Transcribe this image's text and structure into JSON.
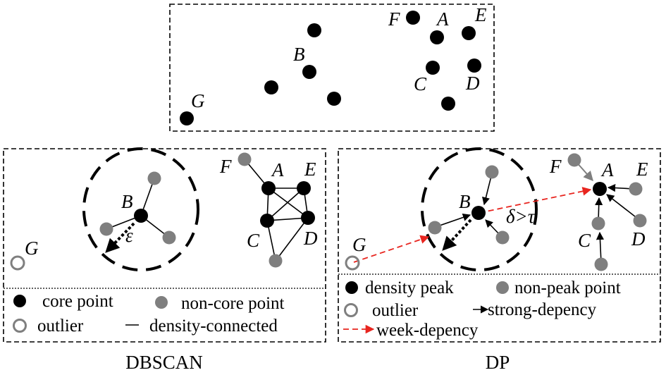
{
  "top_panel": {
    "labels": {
      "A": "A",
      "B": "B",
      "C": "C",
      "D": "D",
      "E": "E",
      "F": "F",
      "G": "G"
    }
  },
  "dbscan_panel": {
    "labels": {
      "A": "A",
      "B": "B",
      "C": "C",
      "D": "D",
      "E": "E",
      "F": "F",
      "G": "G"
    },
    "epsilon_label": "ε",
    "legend": {
      "core_point": "core point",
      "non_core_point": "non-core point",
      "outlier": "outlier",
      "density_connected": "density-connected"
    },
    "caption": "DBSCAN"
  },
  "dp_panel": {
    "labels": {
      "A": "A",
      "B": "B",
      "C": "C",
      "D": "D",
      "E": "E",
      "F": "F",
      "G": "G"
    },
    "delta_label": "δ>τ",
    "legend": {
      "density_peak": "density peak",
      "non_peak_point": "non-peak point",
      "outlier": "outlier",
      "strong_dependency": "strong-depency",
      "weak_dependency": "week-depency"
    },
    "caption": "DP"
  },
  "colors": {
    "core": "#000000",
    "non_core": "#7f7f7f",
    "outlier_ring": "#7f7f7f",
    "weak_arrow": "#e8251f"
  }
}
